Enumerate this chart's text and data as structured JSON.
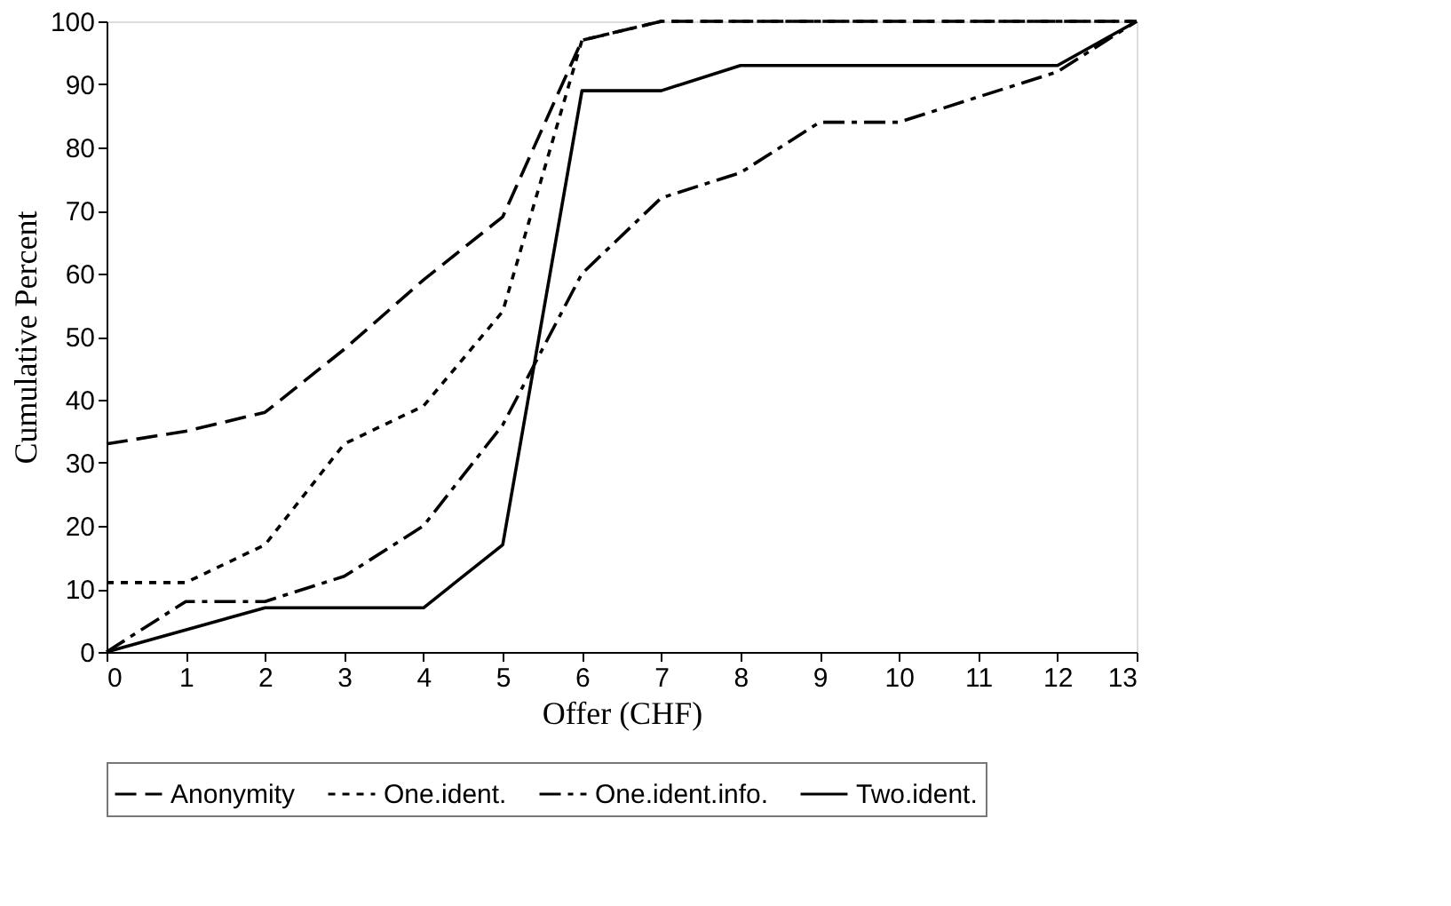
{
  "chart_data": {
    "type": "line",
    "xlabel": "Offer (CHF)",
    "ylabel": "Cumulative Percent",
    "xlim": [
      0,
      13
    ],
    "xticks": [
      0,
      1,
      2,
      3,
      4,
      5,
      6,
      7,
      8,
      9,
      10,
      11,
      12,
      13
    ],
    "ylim": [
      0,
      100
    ],
    "yticks": [
      0,
      10,
      20,
      30,
      40,
      50,
      60,
      70,
      80,
      90,
      100
    ],
    "grid": false,
    "legend": "bottom",
    "marker": "none",
    "series": [
      {
        "name": "Anonymity",
        "color": "#000000",
        "line_style": "dashed",
        "x": [
          0,
          1,
          2,
          3,
          4,
          5,
          6,
          7,
          13
        ],
        "values": [
          33,
          35,
          38,
          48,
          59,
          69,
          97,
          100,
          100
        ]
      },
      {
        "name": "One.ident.",
        "color": "#000000",
        "line_style": "dotted",
        "x": [
          0,
          1,
          2,
          3,
          4,
          5,
          6,
          7,
          13
        ],
        "values": [
          11,
          11,
          17,
          33,
          39,
          54,
          97,
          100,
          100
        ]
      },
      {
        "name": "One.ident.info.",
        "color": "#000000",
        "line_style": "dashdot",
        "x": [
          0,
          1,
          2,
          3,
          4,
          5,
          6,
          7,
          8,
          9,
          10,
          11,
          12,
          13
        ],
        "values": [
          0,
          8,
          8,
          12,
          20,
          36,
          60,
          72,
          76,
          84,
          84,
          88,
          92,
          100
        ]
      },
      {
        "name": "Two.ident.",
        "color": "#000000",
        "line_style": "solid",
        "x": [
          0,
          2,
          3,
          4,
          5,
          6,
          7,
          8,
          12,
          13
        ],
        "values": [
          0,
          7,
          7,
          7,
          17,
          89,
          89,
          93,
          93,
          100
        ]
      }
    ]
  }
}
